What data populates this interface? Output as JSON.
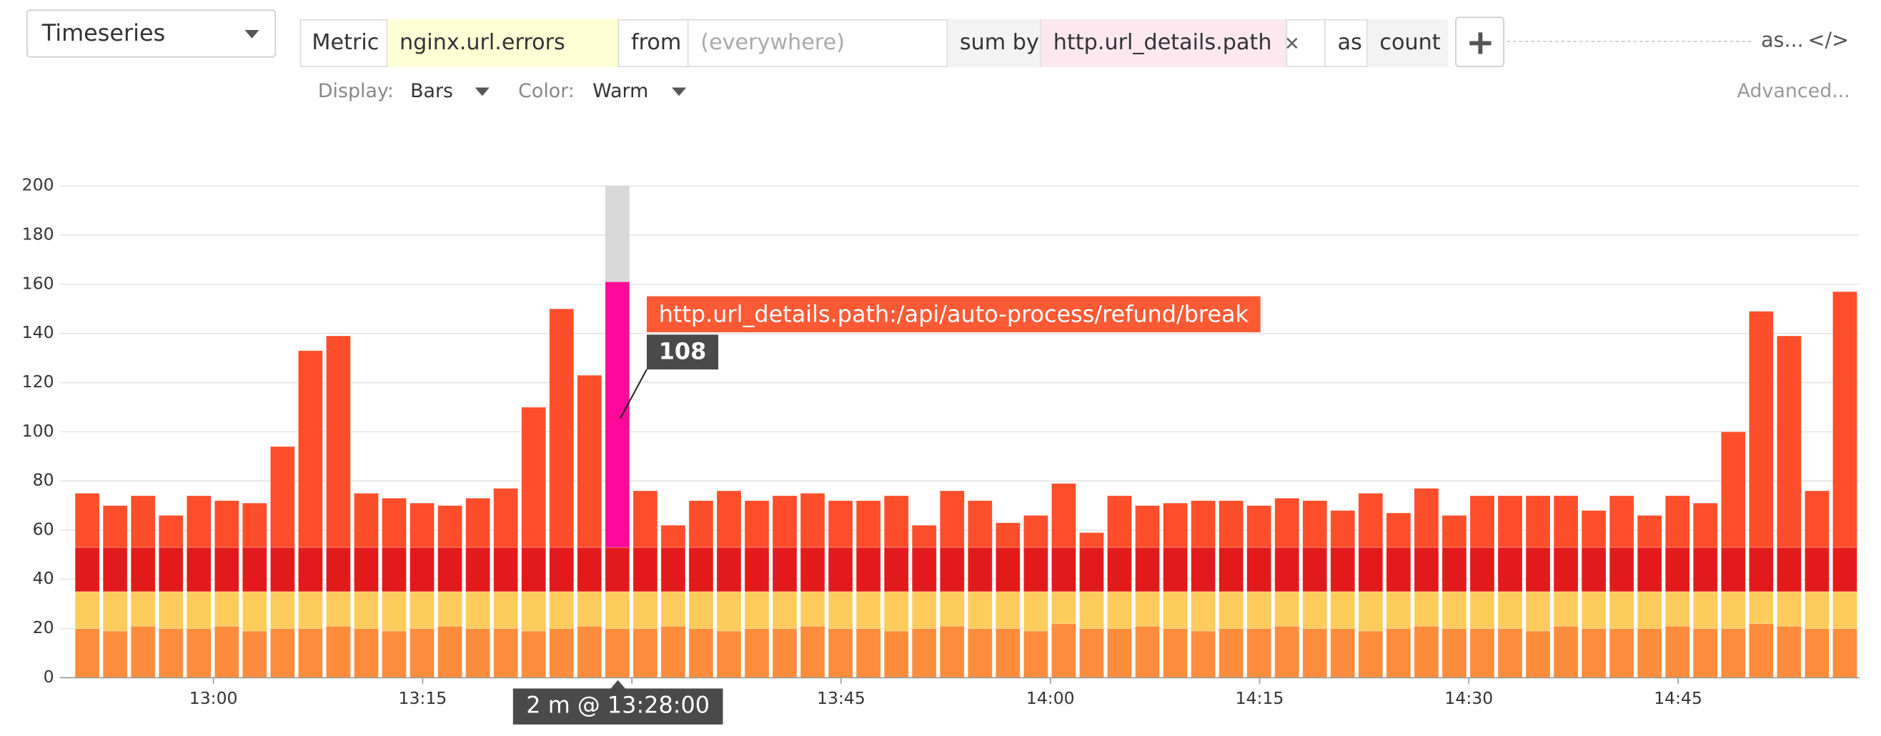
{
  "editor": {
    "visualization": "Timeseries",
    "metric_label": "Metric",
    "metric": "nginx.url.errors",
    "from_label": "from",
    "from": "(everywhere)",
    "sum_by_label": "sum by",
    "group_by": "http.url_details.path",
    "as_label": "as",
    "aggregation": "count",
    "as_menu": "as...",
    "code_toggle": "</>",
    "display_label": "Display:",
    "display": "Bars",
    "color_label": "Color:",
    "color_scheme": "Warm",
    "advanced": "Advanced..."
  },
  "chart_data": {
    "type": "bar",
    "stacked": true,
    "grid": true,
    "x": [
      "12:50",
      "12:52",
      "12:54",
      "12:56",
      "12:58",
      "13:00",
      "13:02",
      "13:04",
      "13:06",
      "13:08",
      "13:10",
      "13:12",
      "13:14",
      "13:16",
      "13:18",
      "13:20",
      "13:22",
      "13:24",
      "13:26",
      "13:28",
      "13:30",
      "13:32",
      "13:34",
      "13:36",
      "13:38",
      "13:40",
      "13:42",
      "13:44",
      "13:46",
      "13:48",
      "13:50",
      "13:52",
      "13:54",
      "13:56",
      "13:58",
      "14:00",
      "14:02",
      "14:04",
      "14:06",
      "14:08",
      "14:10",
      "14:12",
      "14:14",
      "14:16",
      "14:18",
      "14:20",
      "14:22",
      "14:24",
      "14:26",
      "14:28",
      "14:30",
      "14:32",
      "14:34",
      "14:36",
      "14:38",
      "14:40",
      "14:42",
      "14:44",
      "14:46",
      "14:48",
      "14:50",
      "14:52",
      "14:54",
      "14:56"
    ],
    "xlim": [
      "12:49",
      "14:58"
    ],
    "xticks": [
      "13:00",
      "13:15",
      "13:30",
      "13:45",
      "14:00",
      "14:15",
      "14:30",
      "14:45"
    ],
    "ylim": [
      0,
      200
    ],
    "yticks": [
      0,
      20,
      40,
      60,
      80,
      100,
      120,
      140,
      160,
      180,
      200
    ],
    "hover_label": "2 m @ 13:28:00",
    "series": [
      {
        "color": "#fd8d3c",
        "values": [
          20,
          19,
          21,
          20,
          20,
          21,
          19,
          20,
          20,
          21,
          20,
          19,
          20,
          21,
          20,
          20,
          19,
          20,
          21,
          20,
          20,
          21,
          20,
          19,
          20,
          20,
          21,
          20,
          20,
          19,
          20,
          21,
          20,
          20,
          19,
          22,
          20,
          20,
          21,
          20,
          19,
          20,
          20,
          21,
          20,
          20,
          19,
          20,
          21,
          20,
          20,
          20,
          19,
          21,
          20,
          20,
          20,
          21,
          20,
          20,
          22,
          21,
          20,
          20
        ]
      },
      {
        "color": "#fecc5c",
        "values": [
          15,
          16,
          14,
          15,
          15,
          14,
          16,
          15,
          15,
          14,
          15,
          16,
          15,
          14,
          15,
          15,
          16,
          15,
          14,
          15,
          15,
          14,
          15,
          16,
          15,
          15,
          14,
          15,
          15,
          16,
          15,
          14,
          15,
          15,
          16,
          13,
          15,
          15,
          14,
          15,
          16,
          15,
          15,
          14,
          15,
          15,
          16,
          15,
          14,
          15,
          15,
          15,
          16,
          14,
          15,
          15,
          15,
          14,
          15,
          15,
          13,
          14,
          15,
          15
        ]
      },
      {
        "color": "#e31a1c",
        "values": [
          18,
          18,
          18,
          18,
          18,
          18,
          18,
          18,
          18,
          18,
          18,
          18,
          18,
          18,
          18,
          18,
          18,
          18,
          18,
          18,
          18,
          18,
          18,
          18,
          18,
          18,
          18,
          18,
          18,
          18,
          18,
          18,
          18,
          18,
          18,
          18,
          18,
          18,
          18,
          18,
          18,
          18,
          18,
          18,
          18,
          18,
          18,
          18,
          18,
          18,
          18,
          18,
          18,
          18,
          18,
          18,
          18,
          18,
          18,
          18,
          18,
          18,
          18,
          18
        ]
      },
      {
        "color": "#fc4e2a",
        "values": [
          22,
          17,
          21,
          13,
          21,
          19,
          18,
          41,
          80,
          86,
          22,
          20,
          18,
          17,
          20,
          24,
          57,
          97,
          70,
          null,
          23,
          9,
          19,
          23,
          19,
          21,
          22,
          19,
          19,
          21,
          9,
          23,
          19,
          10,
          13,
          26,
          6,
          21,
          17,
          18,
          19,
          19,
          17,
          20,
          19,
          15,
          22,
          14,
          24,
          13,
          21,
          21,
          21,
          21,
          15,
          21,
          13,
          21,
          18,
          47,
          96,
          86,
          23,
          104
        ]
      },
      {
        "name": "http.url_details.path:/api/auto-process/refund/break",
        "color": "#ff0a9a",
        "values": [
          null,
          null,
          null,
          null,
          null,
          null,
          null,
          null,
          null,
          null,
          null,
          null,
          null,
          null,
          null,
          null,
          null,
          null,
          null,
          108,
          null,
          null,
          null,
          null,
          null,
          null,
          null,
          null,
          null,
          null,
          null,
          null,
          null,
          null,
          null,
          null,
          null,
          null,
          null,
          null,
          null,
          null,
          null,
          null,
          null,
          null,
          null,
          null,
          null,
          null,
          null,
          null,
          null,
          null,
          null,
          null,
          null,
          null,
          null,
          null,
          null,
          null,
          null,
          null
        ]
      }
    ]
  }
}
